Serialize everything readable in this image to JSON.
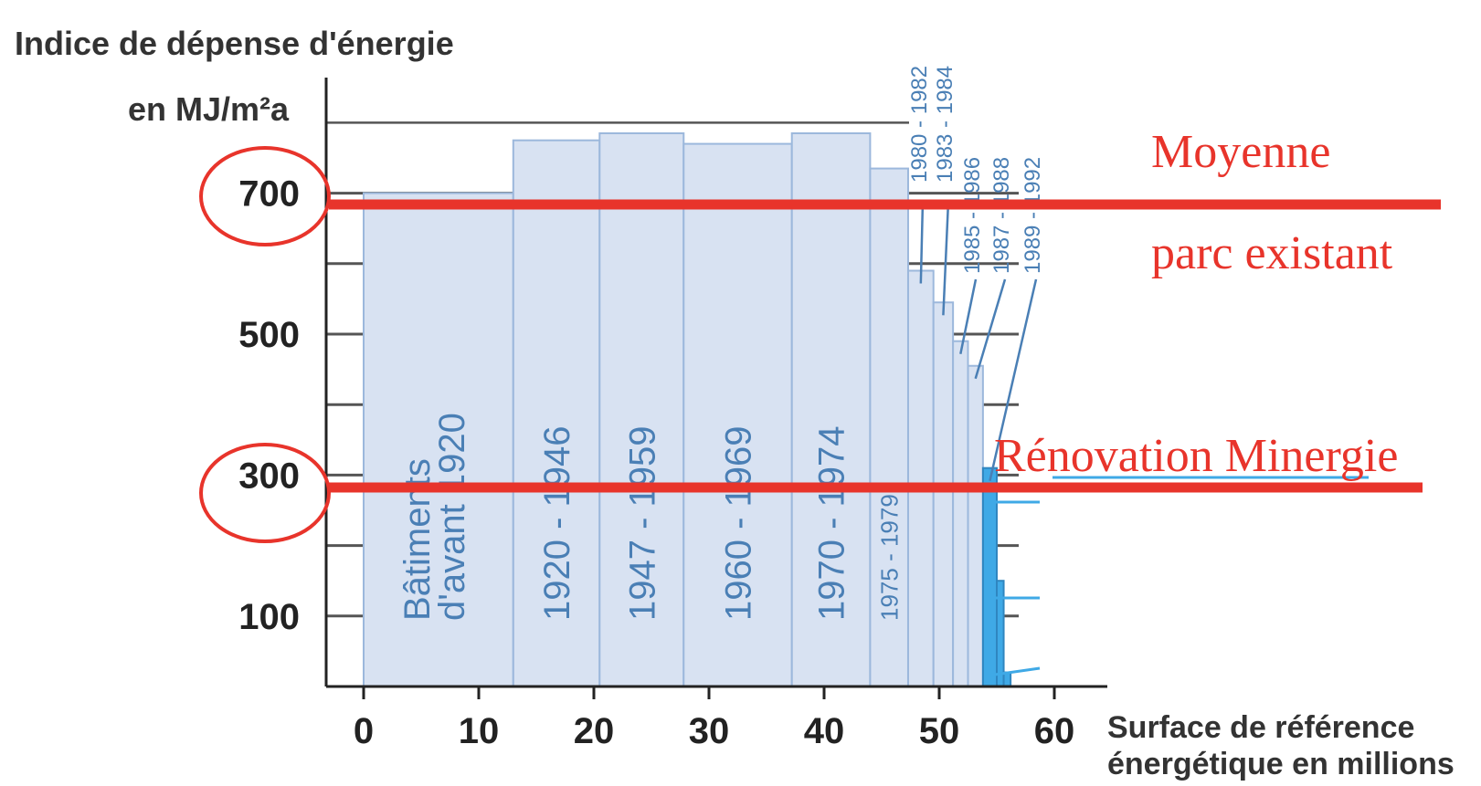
{
  "chart_data": {
    "type": "bar",
    "ylabel_line1": "Indice de dépense d'énergie",
    "ylabel_line2": "en MJ/m²a",
    "xlabel_line1": "Surface de référence",
    "xlabel_line2": "énergétique en millions",
    "xlim": [
      0,
      60
    ],
    "ylim": [
      0,
      800
    ],
    "x_ticks": [
      0,
      10,
      20,
      30,
      40,
      50,
      60
    ],
    "y_tick_labels": [
      100,
      300,
      500,
      700
    ],
    "y_gridlines": [
      100,
      200,
      300,
      400,
      500,
      600,
      700,
      800
    ],
    "bars": [
      {
        "label": "Bâtiments\nd'avant 1920",
        "x0": 0,
        "x1": 13,
        "value": 700
      },
      {
        "label": "1920 - 1946",
        "x0": 13,
        "x1": 20.5,
        "value": 775
      },
      {
        "label": "1947 - 1959",
        "x0": 20.5,
        "x1": 27.8,
        "value": 785
      },
      {
        "label": "1960 - 1969",
        "x0": 27.8,
        "x1": 37.2,
        "value": 770
      },
      {
        "label": "1970 - 1974",
        "x0": 37.2,
        "x1": 44,
        "value": 785
      },
      {
        "label": "1975 - 1979",
        "x0": 44,
        "x1": 47.3,
        "value": 735
      },
      {
        "label": "1980 - 1982",
        "x0": 47.3,
        "x1": 49.5,
        "value": 590
      },
      {
        "label": "1983 - 1984",
        "x0": 49.5,
        "x1": 51.2,
        "value": 545
      },
      {
        "label": "1985 - 1986",
        "x0": 51.2,
        "x1": 52.5,
        "value": 490
      },
      {
        "label": "1987 - 1988",
        "x0": 52.5,
        "x1": 53.8,
        "value": 455
      },
      {
        "label": "1989 - 1992",
        "x0": 53.8,
        "x1": 55,
        "value": 310
      },
      {
        "label": "",
        "x0": 55,
        "x1": 55.6,
        "value": 150
      },
      {
        "label": "",
        "x0": 55.6,
        "x1": 56.2,
        "value": 20
      }
    ],
    "annotations": [
      {
        "text": "Moyenne",
        "y": 690
      },
      {
        "text": "parc existant",
        "y": 690
      },
      {
        "text": "Rénovation Minergie",
        "y": 285
      }
    ],
    "colors": {
      "bar_fill": "#d8e2f2",
      "bar_stroke": "#9cb8dc",
      "bar_label": "#4a7fb5",
      "recent_bar": "#3fa9e6",
      "axis": "#222222",
      "annotation": "#e8342b"
    }
  }
}
